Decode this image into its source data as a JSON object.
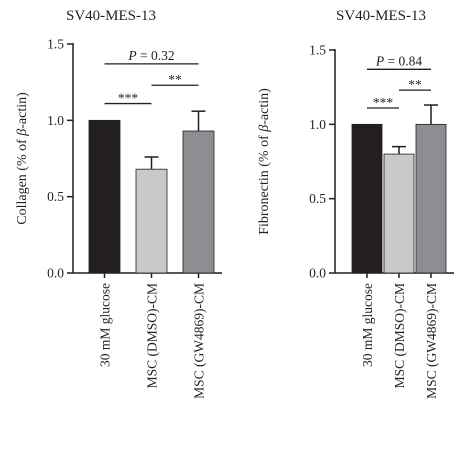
{
  "chart_data": [
    {
      "type": "bar",
      "title": "SV40-MES-13",
      "ylabel": "Collagen (% of β-actin)",
      "ylabel_prefix": "Collagen (% of ",
      "ylabel_italic": "β",
      "ylabel_suffix": "-actin)",
      "ylim": [
        0,
        1.5
      ],
      "yticks": [
        "0.0",
        "0.5",
        "1.0",
        "1.5"
      ],
      "categories": [
        "30 mM glucose",
        "MSC (DMSO)-CM",
        "MSC (GW4869)-CM"
      ],
      "values": [
        1.0,
        0.68,
        0.93
      ],
      "errors": [
        0.0,
        0.08,
        0.13
      ],
      "colors": [
        "#231f20",
        "#c8c9cb",
        "#8d8e91"
      ],
      "annotations": [
        {
          "from": 0,
          "to": 2,
          "level": 1.37,
          "label_italic": "P",
          "label": " = 0.32"
        },
        {
          "from": 0,
          "to": 1,
          "level": 1.11,
          "label": "***"
        },
        {
          "from": 1,
          "to": 2,
          "level": 1.23,
          "label": "**"
        }
      ]
    },
    {
      "type": "bar",
      "title": "SV40-MES-13",
      "ylabel": "Fibronectin (% of β-actin)",
      "ylabel_prefix": "Fibronectin (% of ",
      "ylabel_italic": "β",
      "ylabel_suffix": "-actin)",
      "ylim": [
        0,
        1.5
      ],
      "yticks": [
        "0.0",
        "0.5",
        "1.0",
        "1.5"
      ],
      "categories": [
        "30 mM glucose",
        "MSC (DMSO)-CM",
        "MSC (GW4869)-CM"
      ],
      "values": [
        1.0,
        0.8,
        1.0
      ],
      "errors": [
        0.0,
        0.05,
        0.13
      ],
      "colors": [
        "#231f20",
        "#c8c9cb",
        "#8d8e91"
      ],
      "annotations": [
        {
          "from": 0,
          "to": 2,
          "level": 1.37,
          "label_italic": "P",
          "label": " = 0.84"
        },
        {
          "from": 0,
          "to": 1,
          "level": 1.11,
          "label": "***"
        },
        {
          "from": 1,
          "to": 2,
          "level": 1.23,
          "label": "**"
        }
      ]
    }
  ]
}
